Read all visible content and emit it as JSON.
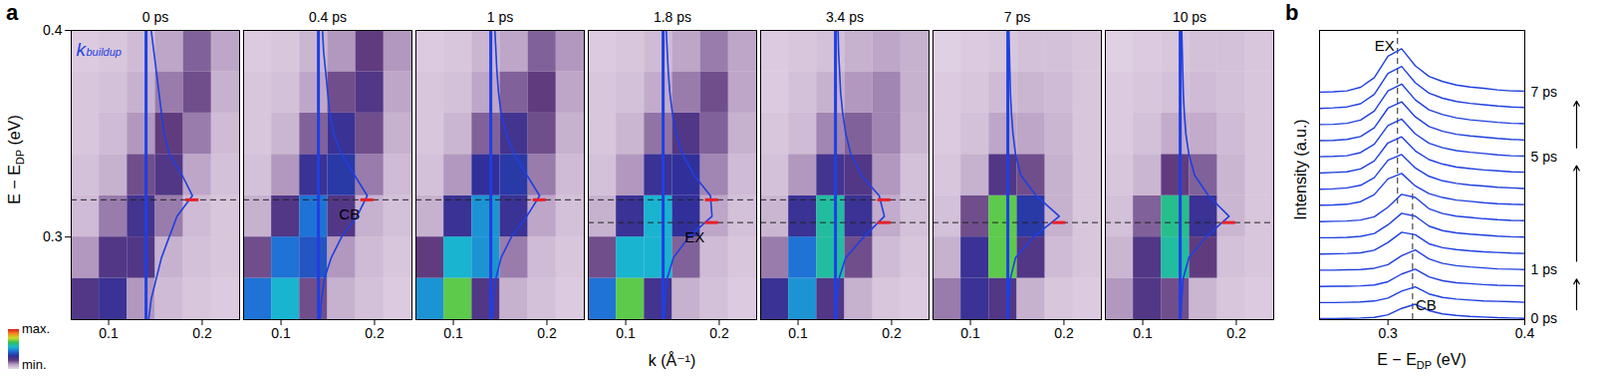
{
  "chart_data": [
    {
      "type": "heatmap",
      "panel": "a",
      "xlabel": "k (Å⁻¹)",
      "ylabel": {
        "text": "E − E",
        "subscript": "DP",
        "unit": " (eV)"
      },
      "xlim": [
        0.06,
        0.24
      ],
      "xticks": [
        0.1,
        0.2
      ],
      "ylim": [
        0.26,
        0.4
      ],
      "yticks": [
        0.3,
        0.4
      ],
      "k_bins": [
        0.06,
        0.09,
        0.12,
        0.15,
        0.18,
        0.21,
        0.24
      ],
      "e_bins": [
        0.26,
        0.28,
        0.3,
        0.32,
        0.34,
        0.36,
        0.38,
        0.4
      ],
      "colorbar": {
        "range": [
          0,
          1
        ],
        "min_label": "min.",
        "max_label": "max."
      },
      "k_buildup": {
        "value": 0.14,
        "text": "k",
        "subscript": "buildup"
      },
      "edc_energies": [
        0.26,
        0.27,
        0.28,
        0.29,
        0.3,
        0.31,
        0.32,
        0.33,
        0.34,
        0.35,
        0.36,
        0.37,
        0.38,
        0.39,
        0.4
      ],
      "line_style": "dashed",
      "panels": [
        {
          "title": "0 ps",
          "intensity": [
            [
              0.25,
              0.3,
              0.12,
              0.06,
              0.04,
              0.03
            ],
            [
              0.12,
              0.25,
              0.25,
              0.08,
              0.05,
              0.04
            ],
            [
              0.06,
              0.15,
              0.28,
              0.15,
              0.06,
              0.04
            ],
            [
              0.05,
              0.08,
              0.2,
              0.25,
              0.1,
              0.05
            ],
            [
              0.04,
              0.06,
              0.12,
              0.22,
              0.15,
              0.06
            ],
            [
              0.04,
              0.05,
              0.08,
              0.15,
              0.2,
              0.08
            ],
            [
              0.03,
              0.04,
              0.06,
              0.1,
              0.18,
              0.1
            ]
          ],
          "edc": [
            0.05,
            0.1,
            0.2,
            0.3,
            0.45,
            0.6,
            0.9,
            0.7,
            0.45,
            0.35,
            0.3,
            0.25,
            0.2,
            0.15,
            0.1
          ],
          "peaks": [
            {
              "energy": 0.318
            }
          ]
        },
        {
          "title": "0.4 ps",
          "intensity": [
            [
              0.45,
              0.55,
              0.2,
              0.08,
              0.05,
              0.03
            ],
            [
              0.2,
              0.45,
              0.4,
              0.12,
              0.06,
              0.04
            ],
            [
              0.08,
              0.25,
              0.45,
              0.25,
              0.08,
              0.05
            ],
            [
              0.05,
              0.12,
              0.3,
              0.35,
              0.15,
              0.06
            ],
            [
              0.04,
              0.07,
              0.18,
              0.3,
              0.2,
              0.08
            ],
            [
              0.04,
              0.05,
              0.1,
              0.2,
              0.25,
              0.1
            ],
            [
              0.03,
              0.04,
              0.07,
              0.12,
              0.22,
              0.12
            ]
          ],
          "edc": [
            0.03,
            0.06,
            0.12,
            0.25,
            0.45,
            0.75,
            0.95,
            0.7,
            0.45,
            0.3,
            0.22,
            0.18,
            0.14,
            0.1,
            0.08
          ],
          "peaks": [
            {
              "energy": 0.318,
              "label": "CB"
            }
          ]
        },
        {
          "title": "1 ps",
          "intensity": [
            [
              0.5,
              0.7,
              0.25,
              0.08,
              0.05,
              0.03
            ],
            [
              0.22,
              0.55,
              0.5,
              0.15,
              0.06,
              0.04
            ],
            [
              0.08,
              0.3,
              0.5,
              0.3,
              0.1,
              0.05
            ],
            [
              0.05,
              0.12,
              0.32,
              0.35,
              0.15,
              0.06
            ],
            [
              0.04,
              0.07,
              0.18,
              0.28,
              0.2,
              0.08
            ],
            [
              0.04,
              0.05,
              0.1,
              0.18,
              0.22,
              0.1
            ],
            [
              0.03,
              0.04,
              0.07,
              0.1,
              0.18,
              0.12
            ]
          ],
          "edc": [
            0.03,
            0.05,
            0.1,
            0.2,
            0.4,
            0.7,
            0.95,
            0.7,
            0.45,
            0.3,
            0.2,
            0.15,
            0.12,
            0.1,
            0.08
          ],
          "peaks": [
            {
              "energy": 0.318
            }
          ]
        },
        {
          "title": "1.8 ps",
          "intensity": [
            [
              0.45,
              0.7,
              0.28,
              0.08,
              0.05,
              0.03
            ],
            [
              0.2,
              0.55,
              0.55,
              0.18,
              0.06,
              0.04
            ],
            [
              0.08,
              0.3,
              0.55,
              0.32,
              0.1,
              0.05
            ],
            [
              0.05,
              0.12,
              0.3,
              0.32,
              0.14,
              0.06
            ],
            [
              0.04,
              0.07,
              0.16,
              0.25,
              0.18,
              0.08
            ],
            [
              0.04,
              0.05,
              0.09,
              0.15,
              0.2,
              0.1
            ],
            [
              0.03,
              0.04,
              0.06,
              0.1,
              0.15,
              0.1
            ]
          ],
          "edc": [
            0.02,
            0.04,
            0.08,
            0.2,
            0.5,
            0.95,
            0.92,
            0.6,
            0.38,
            0.25,
            0.18,
            0.13,
            0.1,
            0.08,
            0.06
          ],
          "peaks": [
            {
              "energy": 0.318
            },
            {
              "energy": 0.307,
              "label": "EX"
            }
          ]
        },
        {
          "title": "3.4 ps",
          "intensity": [
            [
              0.3,
              0.5,
              0.25,
              0.08,
              0.04,
              0.03
            ],
            [
              0.15,
              0.45,
              0.6,
              0.2,
              0.06,
              0.04
            ],
            [
              0.07,
              0.3,
              0.6,
              0.3,
              0.09,
              0.05
            ],
            [
              0.05,
              0.12,
              0.28,
              0.25,
              0.12,
              0.05
            ],
            [
              0.04,
              0.06,
              0.14,
              0.18,
              0.14,
              0.07
            ],
            [
              0.03,
              0.05,
              0.08,
              0.12,
              0.14,
              0.08
            ],
            [
              0.03,
              0.04,
              0.05,
              0.08,
              0.1,
              0.08
            ]
          ],
          "edc": [
            0.02,
            0.03,
            0.07,
            0.2,
            0.55,
            0.95,
            0.85,
            0.5,
            0.3,
            0.2,
            0.14,
            0.1,
            0.08,
            0.06,
            0.05
          ],
          "peaks": [
            {
              "energy": 0.318
            },
            {
              "energy": 0.307
            }
          ]
        },
        {
          "title": "7 ps",
          "intensity": [
            [
              0.15,
              0.3,
              0.25,
              0.08,
              0.04,
              0.03
            ],
            [
              0.08,
              0.3,
              0.7,
              0.25,
              0.06,
              0.04
            ],
            [
              0.05,
              0.2,
              0.7,
              0.35,
              0.08,
              0.04
            ],
            [
              0.04,
              0.08,
              0.25,
              0.2,
              0.08,
              0.04
            ],
            [
              0.03,
              0.05,
              0.1,
              0.1,
              0.07,
              0.04
            ],
            [
              0.03,
              0.04,
              0.06,
              0.07,
              0.06,
              0.04
            ],
            [
              0.02,
              0.03,
              0.04,
              0.05,
              0.05,
              0.04
            ]
          ],
          "edc": [
            0.01,
            0.02,
            0.05,
            0.15,
            0.5,
            1.0,
            0.55,
            0.25,
            0.15,
            0.1,
            0.07,
            0.05,
            0.04,
            0.03,
            0.02
          ],
          "peaks": [
            {
              "energy": 0.307
            }
          ]
        },
        {
          "title": "10 ps",
          "intensity": [
            [
              0.12,
              0.25,
              0.2,
              0.07,
              0.04,
              0.03
            ],
            [
              0.07,
              0.25,
              0.6,
              0.22,
              0.05,
              0.04
            ],
            [
              0.05,
              0.18,
              0.62,
              0.3,
              0.07,
              0.04
            ],
            [
              0.04,
              0.07,
              0.22,
              0.18,
              0.07,
              0.04
            ],
            [
              0.03,
              0.05,
              0.09,
              0.09,
              0.06,
              0.04
            ],
            [
              0.03,
              0.04,
              0.05,
              0.06,
              0.05,
              0.04
            ],
            [
              0.02,
              0.03,
              0.04,
              0.05,
              0.05,
              0.04
            ]
          ],
          "edc": [
            0.01,
            0.03,
            0.06,
            0.17,
            0.5,
            0.95,
            0.55,
            0.28,
            0.17,
            0.11,
            0.08,
            0.06,
            0.05,
            0.04,
            0.03
          ],
          "peaks": [
            {
              "energy": 0.307
            }
          ]
        }
      ]
    },
    {
      "type": "line",
      "panel": "b",
      "xlabel": {
        "text": "E − E",
        "subscript": "DP",
        "unit": " (eV)"
      },
      "ylabel": "Intensity (a.u.)",
      "xlim": [
        0.25,
        0.4
      ],
      "xticks": [
        0.3,
        0.4
      ],
      "ylim": [
        0,
        9
      ],
      "tick_labels": "x",
      "color": "#1f3fe0",
      "x": [
        0.25,
        0.26,
        0.27,
        0.28,
        0.29,
        0.3,
        0.31,
        0.32,
        0.33,
        0.34,
        0.35,
        0.36,
        0.37,
        0.38,
        0.39,
        0.4
      ],
      "series": [
        {
          "values": [
            0.03,
            0.03,
            0.04,
            0.05,
            0.07,
            0.15,
            0.35,
            0.48,
            0.28,
            0.18,
            0.13,
            0.1,
            0.08,
            0.06,
            0.05,
            0.04
          ]
        },
        {
          "values": [
            0.53,
            0.53,
            0.54,
            0.55,
            0.58,
            0.67,
            0.89,
            1.02,
            0.8,
            0.69,
            0.64,
            0.61,
            0.58,
            0.57,
            0.56,
            0.54
          ]
        },
        {
          "values": [
            1.03,
            1.04,
            1.04,
            1.05,
            1.08,
            1.18,
            1.42,
            1.57,
            1.33,
            1.21,
            1.15,
            1.12,
            1.09,
            1.07,
            1.06,
            1.05
          ]
        },
        {
          "values": [
            1.54,
            1.54,
            1.55,
            1.56,
            1.6,
            1.71,
            1.99,
            2.17,
            1.89,
            1.75,
            1.68,
            1.64,
            1.61,
            1.58,
            1.57,
            1.56
          ]
        },
        {
          "values": [
            2.04,
            2.05,
            2.06,
            2.08,
            2.16,
            2.4,
            2.72,
            2.64,
            2.36,
            2.24,
            2.18,
            2.14,
            2.11,
            2.09,
            2.07,
            2.06
          ]
        },
        {
          "values": [
            2.55,
            2.55,
            2.56,
            2.59,
            2.68,
            2.95,
            3.31,
            3.22,
            2.91,
            2.77,
            2.7,
            2.66,
            2.63,
            2.6,
            2.58,
            2.57
          ]
        },
        {
          "values": [
            3.05,
            3.06,
            3.07,
            3.1,
            3.2,
            3.5,
            3.9,
            3.8,
            3.45,
            3.3,
            3.22,
            3.18,
            3.14,
            3.11,
            3.09,
            3.08
          ]
        },
        {
          "values": [
            3.56,
            3.57,
            3.59,
            3.67,
            3.89,
            4.38,
            4.55,
            4.16,
            3.92,
            3.8,
            3.72,
            3.68,
            3.64,
            3.61,
            3.59,
            3.58
          ]
        },
        {
          "values": [
            4.06,
            4.07,
            4.1,
            4.18,
            4.42,
            4.96,
            5.14,
            4.72,
            4.46,
            4.32,
            4.24,
            4.19,
            4.16,
            4.12,
            4.1,
            4.08
          ]
        },
        {
          "values": [
            4.56,
            4.58,
            4.6,
            4.69,
            4.94,
            5.5,
            5.69,
            5.25,
            4.98,
            4.84,
            4.75,
            4.7,
            4.66,
            4.63,
            4.6,
            4.59
          ]
        },
        {
          "values": [
            5.07,
            5.08,
            5.1,
            5.2,
            5.46,
            6.04,
            6.24,
            5.78,
            5.49,
            5.35,
            5.26,
            5.21,
            5.17,
            5.13,
            5.1,
            5.09
          ]
        },
        {
          "values": [
            5.57,
            5.58,
            5.61,
            5.7,
            5.97,
            6.58,
            6.78,
            6.31,
            6.01,
            5.86,
            5.77,
            5.72,
            5.68,
            5.64,
            5.61,
            5.59
          ]
        },
        {
          "values": [
            6.07,
            6.08,
            6.11,
            6.21,
            6.49,
            7.12,
            7.33,
            6.84,
            6.53,
            6.38,
            6.28,
            6.22,
            6.18,
            6.14,
            6.11,
            6.1
          ]
        },
        {
          "values": [
            6.57,
            6.59,
            6.62,
            6.72,
            7.01,
            7.66,
            7.88,
            7.37,
            7.05,
            6.89,
            6.79,
            6.73,
            6.69,
            6.65,
            6.62,
            6.6
          ]
        },
        {
          "values": [
            7.08,
            7.09,
            7.12,
            7.23,
            7.53,
            8.2,
            8.43,
            7.9,
            7.57,
            7.41,
            7.3,
            7.24,
            7.2,
            7.15,
            7.12,
            7.11
          ]
        }
      ],
      "markers": [
        {
          "label": "EX",
          "value": 0.307
        },
        {
          "label": "CB",
          "value": 0.318
        }
      ],
      "line_style": "dashed",
      "time_labels": [
        {
          "text": "0 ps",
          "series": 0
        },
        {
          "text": "1 ps",
          "series": 3
        },
        {
          "text": "5 ps",
          "series": 10
        },
        {
          "text": "7 ps",
          "series": 14
        }
      ]
    }
  ]
}
